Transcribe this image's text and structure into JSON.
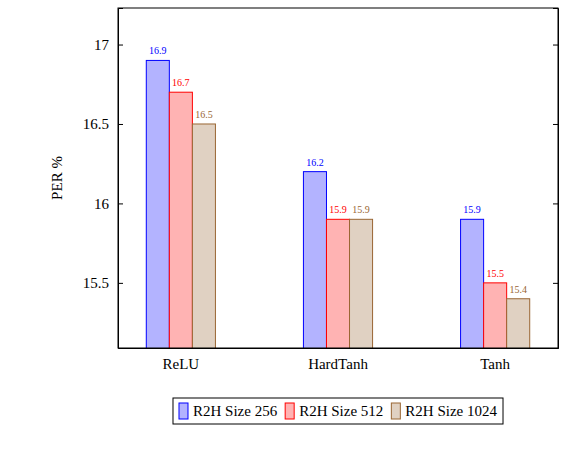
{
  "chart_data": {
    "type": "bar",
    "y_label": "PER %",
    "categories": [
      "ReLU",
      "HardTanh",
      "Tanh"
    ],
    "series": [
      {
        "name": "R2H Size 256",
        "color": "#0000ff",
        "values": [
          16.9,
          16.2,
          15.9
        ]
      },
      {
        "name": "R2H Size 512",
        "color": "#ff0000",
        "values": [
          16.7,
          15.9,
          15.5
        ]
      },
      {
        "name": "R2H Size 1024",
        "color": "#996633",
        "values": [
          16.5,
          15.9,
          15.4
        ]
      }
    ],
    "ylim": [
      15.09,
      17.23
    ],
    "yticks": [
      15.5,
      16,
      16.5,
      17
    ],
    "data_labels": true,
    "legend": "bottom",
    "grid": false
  }
}
